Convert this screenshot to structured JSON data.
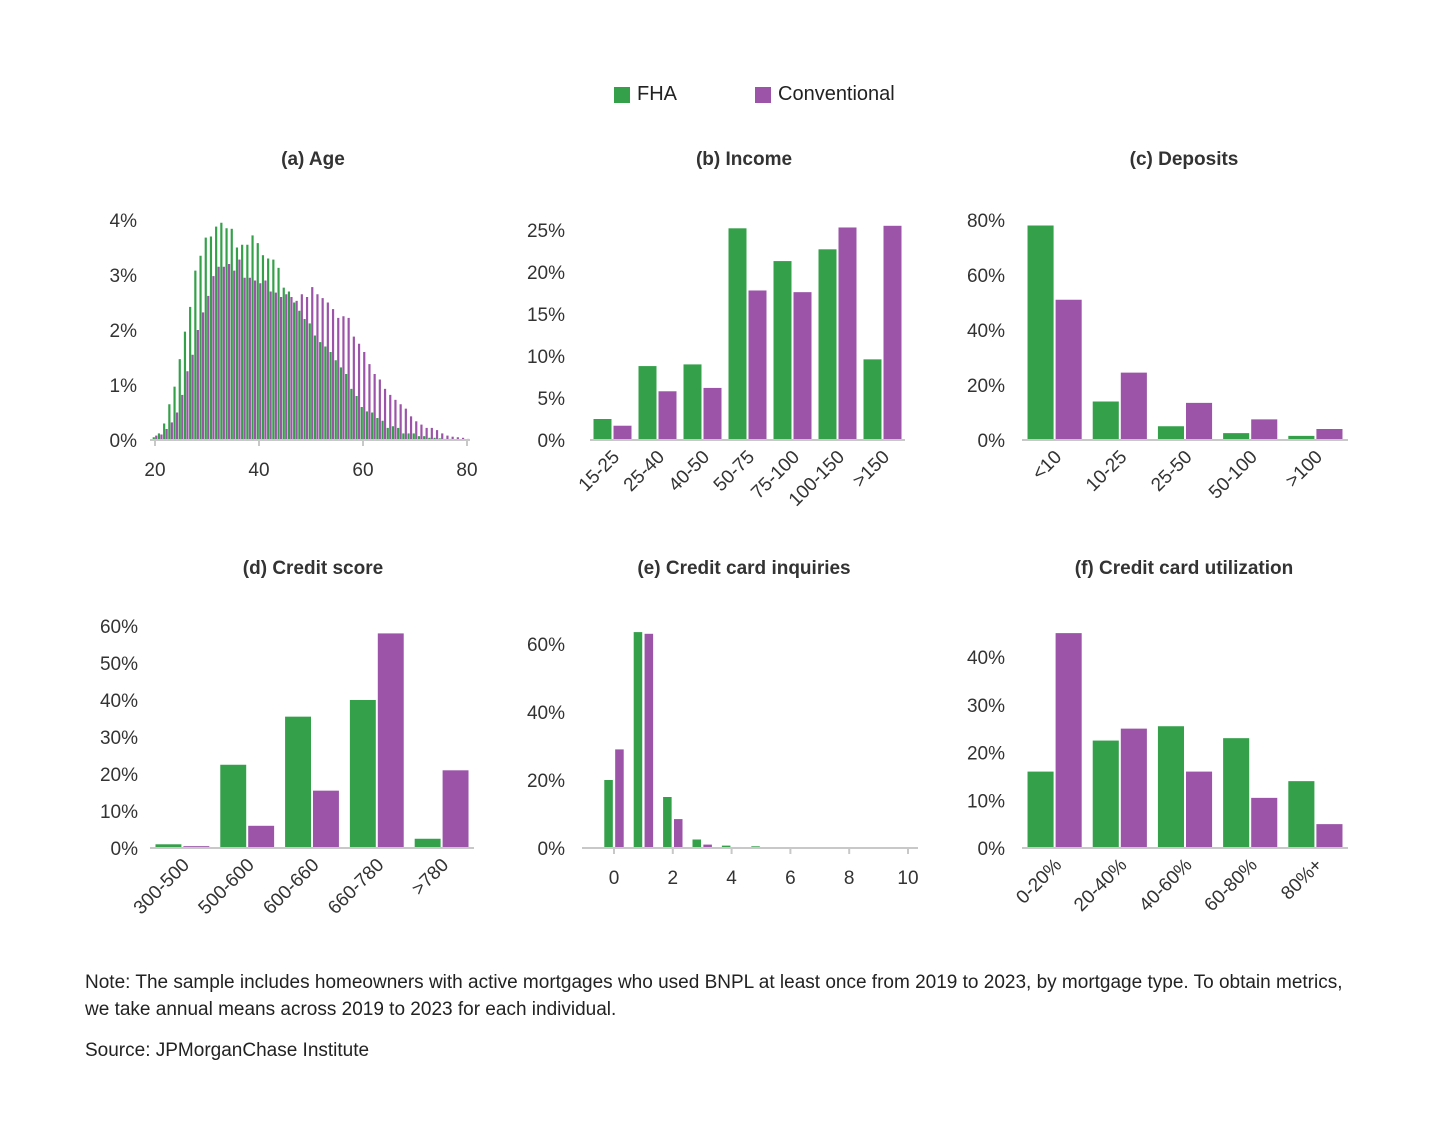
{
  "legend": [
    {
      "label": "FHA",
      "color": "#34a04a"
    },
    {
      "label": "Conventional",
      "color": "#9b54a7"
    }
  ],
  "note": "Note: The sample includes homeowners with active mortgages who used BNPL at least once from 2019 to 2023, by mortgage type. To obtain metrics, we take annual means across 2019 to 2023 for each individual.",
  "source": "Source: JPMorganChase Institute",
  "chart_data": [
    {
      "id": "age",
      "type": "bar",
      "title": "(a) Age",
      "xlabel": "",
      "ylabel": "",
      "ylim": [
        0,
        4
      ],
      "yticks": [
        0,
        1,
        2,
        3,
        4
      ],
      "ytick_labels": [
        "0%",
        "1%",
        "2%",
        "3%",
        "4%"
      ],
      "xticks": [
        20,
        40,
        60,
        80
      ],
      "xtick_labels": [
        "20",
        "40",
        "60",
        "80"
      ],
      "x": [
        20,
        21,
        22,
        23,
        24,
        25,
        26,
        27,
        28,
        29,
        30,
        31,
        32,
        33,
        34,
        35,
        36,
        37,
        38,
        39,
        40,
        41,
        42,
        43,
        44,
        45,
        46,
        47,
        48,
        49,
        50,
        51,
        52,
        53,
        54,
        55,
        56,
        57,
        58,
        59,
        60,
        61,
        62,
        63,
        64,
        65,
        66,
        67,
        68,
        69,
        70,
        71,
        72,
        73,
        74,
        75,
        76,
        77,
        78,
        79,
        80
      ],
      "series": [
        {
          "name": "FHA",
          "values": [
            0.05,
            0.12,
            0.3,
            0.65,
            0.97,
            1.47,
            1.97,
            2.42,
            3.08,
            3.35,
            3.68,
            3.7,
            3.88,
            3.95,
            3.85,
            3.84,
            3.5,
            3.55,
            3.55,
            3.72,
            3.58,
            3.36,
            3.3,
            3.28,
            3.13,
            2.77,
            2.7,
            2.5,
            2.35,
            2.2,
            2.12,
            1.9,
            1.78,
            1.7,
            1.6,
            1.45,
            1.32,
            1.2,
            0.93,
            0.8,
            0.6,
            0.52,
            0.5,
            0.4,
            0.35,
            0.22,
            0.25,
            0.22,
            0.12,
            0.12,
            0.12,
            0.07,
            0.07,
            0.04,
            0.04,
            0.03,
            0.02,
            0.02,
            0.01,
            0.01,
            0.01
          ]
        },
        {
          "name": "Conventional",
          "values": [
            0.08,
            0.1,
            0.2,
            0.32,
            0.5,
            0.82,
            1.25,
            1.55,
            2.0,
            2.32,
            2.62,
            2.98,
            3.15,
            3.15,
            3.2,
            3.08,
            3.28,
            2.95,
            2.95,
            2.9,
            2.85,
            2.9,
            2.7,
            2.68,
            2.6,
            2.65,
            2.6,
            2.53,
            2.65,
            2.6,
            2.78,
            2.65,
            2.58,
            2.5,
            2.38,
            2.22,
            2.25,
            2.22,
            1.88,
            1.75,
            1.6,
            1.38,
            1.2,
            1.1,
            0.93,
            0.82,
            0.73,
            0.65,
            0.57,
            0.43,
            0.34,
            0.28,
            0.22,
            0.22,
            0.18,
            0.12,
            0.08,
            0.06,
            0.05,
            0.04,
            0.02
          ]
        }
      ]
    },
    {
      "id": "income",
      "type": "bar",
      "title": "(b) Income",
      "ylim": [
        0,
        26
      ],
      "yticks": [
        0,
        5,
        10,
        15,
        20,
        25
      ],
      "ytick_labels": [
        "0%",
        "5%",
        "10%",
        "15%",
        "20%",
        "25%"
      ],
      "categories": [
        "15-25",
        "25-40",
        "40-50",
        "50-75",
        "75-100",
        "100-150",
        ">150"
      ],
      "series": [
        {
          "name": "FHA",
          "values": [
            2.5,
            8.8,
            9.0,
            25.2,
            21.3,
            22.7,
            9.6
          ]
        },
        {
          "name": "Conventional",
          "values": [
            1.7,
            5.8,
            6.2,
            17.8,
            17.6,
            25.3,
            25.5
          ]
        }
      ]
    },
    {
      "id": "deposits",
      "type": "bar",
      "title": "(c) Deposits",
      "ylim": [
        0,
        80
      ],
      "yticks": [
        0,
        20,
        40,
        60,
        80
      ],
      "ytick_labels": [
        "0%",
        "20%",
        "40%",
        "60%",
        "80%"
      ],
      "categories": [
        "<10",
        "10-25",
        "25-50",
        "50-100",
        ">100"
      ],
      "series": [
        {
          "name": "FHA",
          "values": [
            78,
            14,
            5,
            2.5,
            1.5
          ]
        },
        {
          "name": "Conventional",
          "values": [
            51,
            24.5,
            13.5,
            7.5,
            4
          ]
        }
      ]
    },
    {
      "id": "credit-score",
      "type": "bar",
      "title": "(d) Credit score",
      "ylim": [
        0,
        60
      ],
      "yticks": [
        0,
        10,
        20,
        30,
        40,
        50,
        60
      ],
      "ytick_labels": [
        "0%",
        "10%",
        "20%",
        "30%",
        "40%",
        "50%",
        "60%"
      ],
      "categories": [
        "300-500",
        "500-600",
        "600-660",
        "660-780",
        ">780"
      ],
      "series": [
        {
          "name": "FHA",
          "values": [
            1,
            22.5,
            35.5,
            40,
            2.5
          ]
        },
        {
          "name": "Conventional",
          "values": [
            0.5,
            6,
            15.5,
            58,
            21
          ]
        }
      ]
    },
    {
      "id": "inquiries",
      "type": "bar",
      "title": "(e) Credit card inquiries",
      "ylim": [
        0,
        60
      ],
      "yticks": [
        0,
        20,
        40,
        60
      ],
      "ytick_labels": [
        "0%",
        "20%",
        "40%",
        "60%"
      ],
      "xticks": [
        0,
        2,
        4,
        6,
        8,
        10
      ],
      "xtick_labels": [
        "0",
        "2",
        "4",
        "6",
        "8",
        "10"
      ],
      "x": [
        0,
        1,
        2,
        3,
        4,
        5,
        6,
        7,
        8,
        9,
        10
      ],
      "series": [
        {
          "name": "FHA",
          "values": [
            20,
            63.5,
            15,
            2.5,
            0.7,
            0.5,
            0,
            0,
            0,
            0,
            0
          ]
        },
        {
          "name": "Conventional",
          "values": [
            29,
            63,
            8.5,
            1,
            0.3,
            0.2,
            0,
            0,
            0,
            0,
            0
          ]
        }
      ]
    },
    {
      "id": "utilization",
      "type": "bar",
      "title": "(f) Credit card utilization",
      "ylim": [
        0,
        40
      ],
      "yticks": [
        0,
        10,
        20,
        30,
        40
      ],
      "ytick_labels": [
        "0%",
        "10%",
        "20%",
        "30%",
        "40%"
      ],
      "categories": [
        "0-20%",
        "20-40%",
        "40-60%",
        "60-80%",
        "80%+"
      ],
      "series": [
        {
          "name": "FHA",
          "values": [
            16,
            22.5,
            25.5,
            23,
            14
          ]
        },
        {
          "name": "Conventional",
          "values": [
            45,
            25,
            16,
            10.5,
            5
          ]
        }
      ]
    }
  ]
}
